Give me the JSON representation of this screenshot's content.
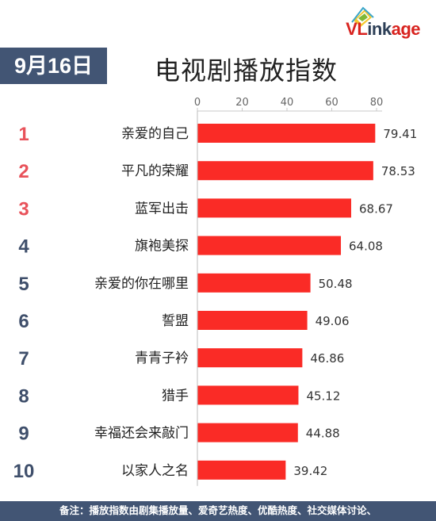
{
  "header": {
    "logo_vl": "VL",
    "logo_ink": "ink",
    "logo_age": "age",
    "date": "9月16日",
    "title": "电视剧播放指数"
  },
  "colors": {
    "bar": "#fa2b26",
    "rank_top": "#e8525a",
    "rank_other": "#3f4f6b",
    "badge": "#425574"
  },
  "chart_data": {
    "type": "bar",
    "orientation": "horizontal",
    "ticks": [
      0,
      20,
      40,
      60,
      80
    ],
    "xlim": [
      0,
      80
    ],
    "ranks": [
      "1",
      "2",
      "3",
      "4",
      "5",
      "6",
      "7",
      "8",
      "9",
      "10"
    ],
    "categories": [
      "亲爱的自己",
      "平凡的荣耀",
      "蓝军出击",
      "旗袍美探",
      "亲爱的你在哪里",
      "誓盟",
      "青青子衿",
      "猎手",
      "幸福还会来敲门",
      "以家人之名"
    ],
    "values": [
      79.41,
      78.53,
      68.67,
      64.08,
      50.48,
      49.06,
      46.86,
      45.12,
      44.88,
      39.42
    ],
    "value_labels": [
      "79.41",
      "78.53",
      "68.67",
      "64.08",
      "50.48",
      "49.06",
      "46.86",
      "45.12",
      "44.88",
      "39.42"
    ],
    "grid": false
  },
  "footer": {
    "note": "备注：播放指数由剧集播放量、爱奇艺热度、优酷热度、社交媒体讨论、"
  }
}
